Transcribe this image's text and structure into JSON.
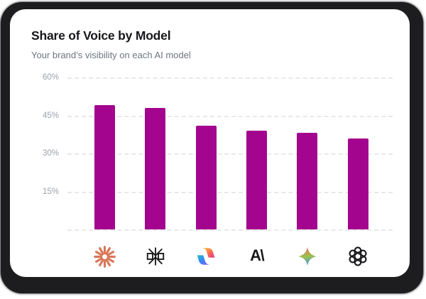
{
  "header": {
    "title": "Share of Voice by Model",
    "subtitle": "Your brand’s visibility on each AI model"
  },
  "chart_data": {
    "type": "bar",
    "title": "Share of Voice by Model",
    "subtitle": "Your brand’s visibility on each AI model",
    "categories": [
      "Claude",
      "Perplexity",
      "Microsoft Copilot",
      "Anthropic",
      "Google Gemini",
      "OpenAI ChatGPT"
    ],
    "values": [
      49,
      48,
      41,
      39,
      38,
      36
    ],
    "unit": "%",
    "ylim": [
      0,
      60
    ],
    "y_ticks": [
      "60%",
      "45%",
      "30%",
      "15%"
    ],
    "x_tick_style": "brand-logo-icons",
    "grid": "horizontal-dashed",
    "legend": "none",
    "bar_color": "#a4058e",
    "icon_names": [
      "claude-icon",
      "perplexity-icon",
      "copilot-icon",
      "anthropic-icon",
      "gemini-icon",
      "openai-icon"
    ]
  },
  "icons": {
    "anthropic_glyph": "A\\"
  },
  "colors": {
    "backdrop": "#1d1d1f",
    "card": "#ffffff",
    "bar": "#a4058e",
    "gridline": "#e7e8ec",
    "tick_label": "#9ba1aa",
    "title": "#17171a",
    "subtitle": "#6f7580",
    "claude_coral": "#d9785a"
  }
}
